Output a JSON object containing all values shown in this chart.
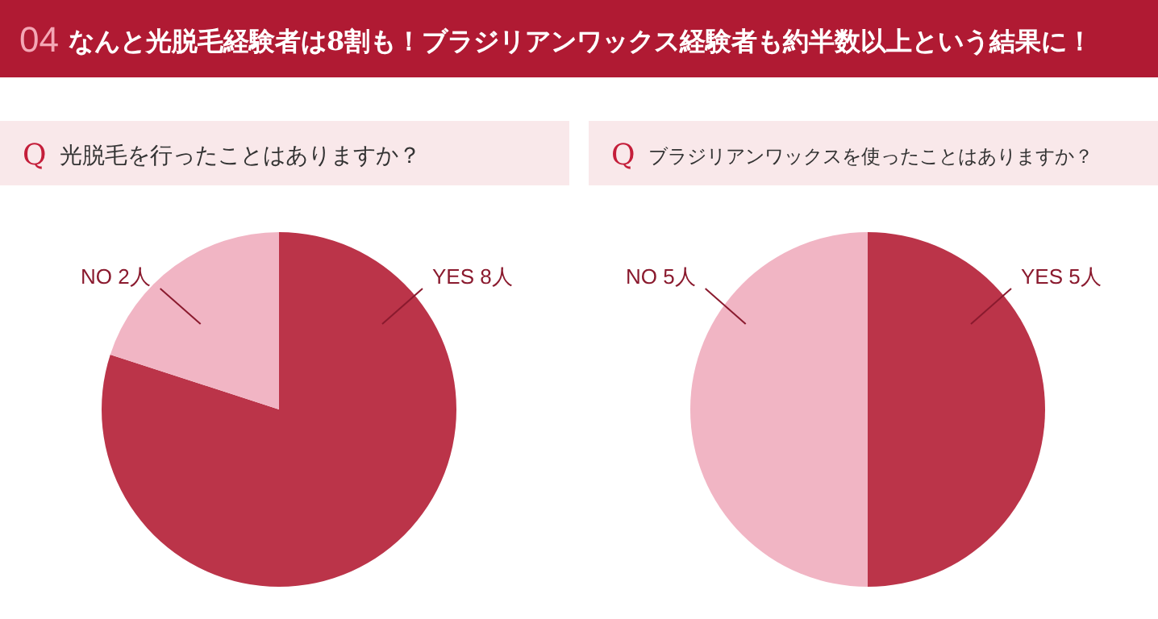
{
  "chart_data": [
    {
      "type": "other",
      "title": "なんと光脱毛経験者は8割も！ブラジリアンワックス経験者も約半数以上という結果に！",
      "annotations": [
        "04"
      ]
    },
    {
      "type": "pie",
      "title": "光脱毛を行ったことはありますか？",
      "annotations": [
        "Q"
      ],
      "categories": [
        "YES",
        "NO"
      ],
      "values": [
        8,
        2
      ],
      "value_labels": [
        "8人",
        "2人"
      ],
      "colors": [
        "#bb3449",
        "#f1b5c4"
      ]
    },
    {
      "type": "pie",
      "title": "ブラジリアンワックスを使ったことはありますか？",
      "annotations": [
        "Q"
      ],
      "categories": [
        "YES",
        "NO"
      ],
      "values": [
        5,
        5
      ],
      "value_labels": [
        "5人",
        "5人"
      ],
      "colors": [
        "#bb3449",
        "#f1b5c4"
      ]
    }
  ]
}
